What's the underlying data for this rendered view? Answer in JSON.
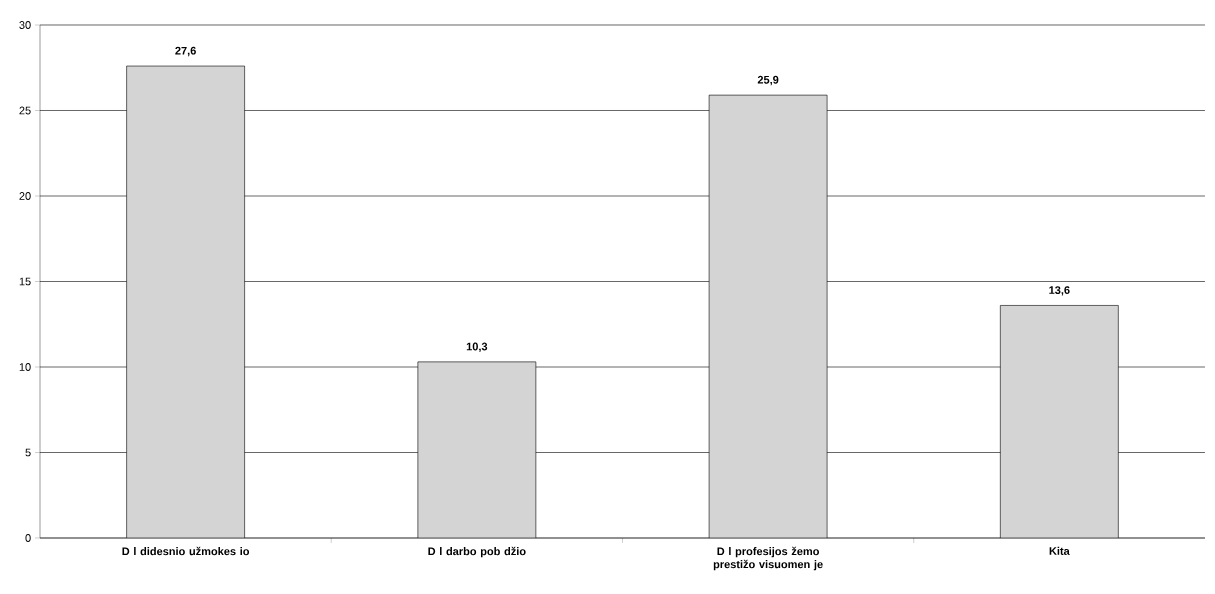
{
  "chart_data": {
    "type": "bar",
    "categories": [
      "D l didesnio užmokes io",
      "D l darbo pob džio",
      "D l profesijos žemo prestižo visuomen je",
      "Kita"
    ],
    "values": [
      27.6,
      10.3,
      25.9,
      13.6
    ],
    "value_labels": [
      "27,6",
      "10,3",
      "25,9",
      "13,6"
    ],
    "color": "#d4d4d4",
    "ylim": [
      0,
      30
    ],
    "yticks": [
      0,
      5,
      10,
      15,
      20,
      25,
      30
    ],
    "grid": "y"
  }
}
